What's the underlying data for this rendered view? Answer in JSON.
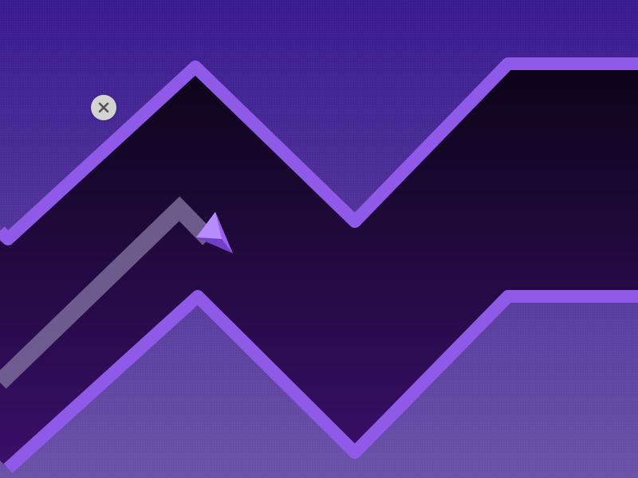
{
  "game": {
    "title": "",
    "mode": "wave",
    "colors": {
      "sky_top": "#3a1a8f",
      "sky_bottom": "#6a52a8",
      "corridor_top": "#0c0418",
      "corridor_bottom": "#3a0f6a",
      "wall": "#8f5ae8",
      "trail": "#7a6a9a",
      "player": "#9a60f0",
      "close_button": "#d3d3d3",
      "close_icon": "#555555"
    },
    "controls": {
      "close_button_icon": "close-icon"
    }
  }
}
